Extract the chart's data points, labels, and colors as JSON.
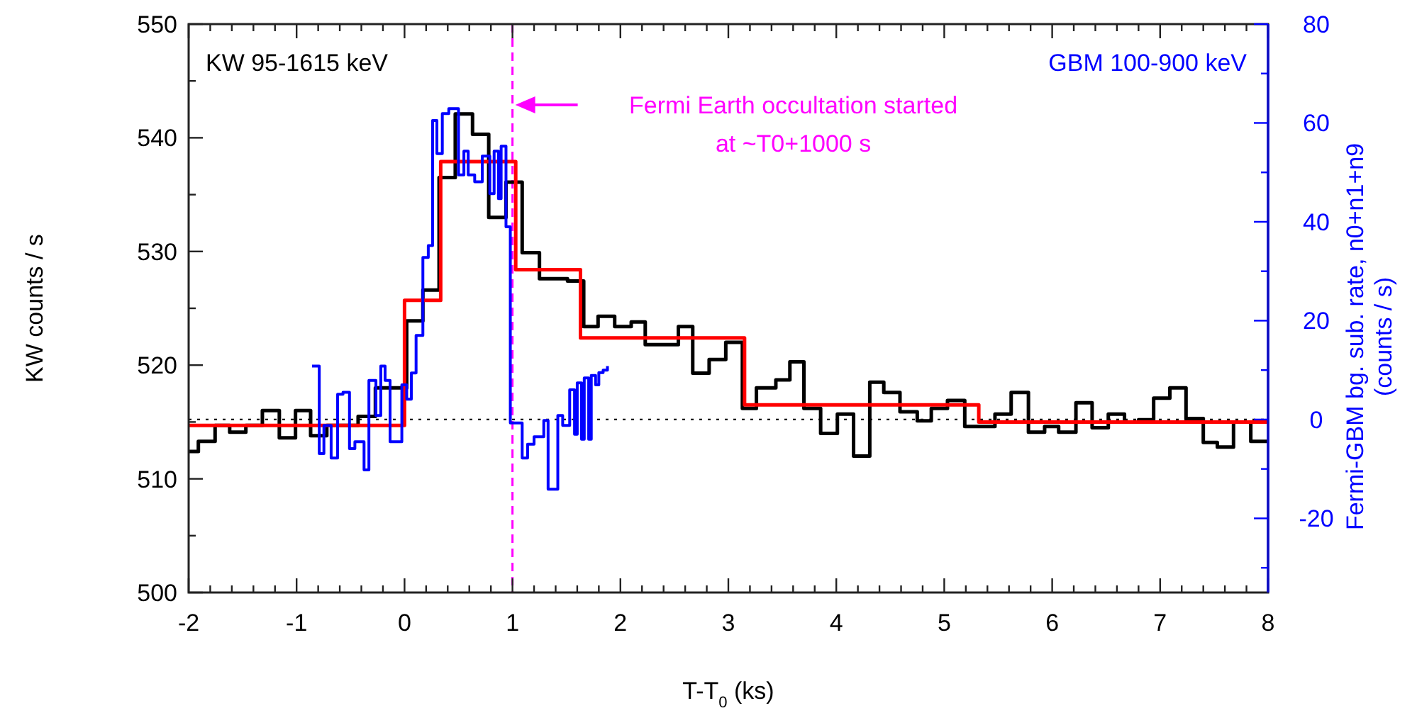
{
  "chart_data": {
    "type": "step",
    "xlabel": "T-T$_{0}$ (ks)",
    "ylabel": "KW counts / s",
    "y2label": "Fermi-GBM bg. sub. rate, n0+n1+n9\n(counts / s)",
    "xlim": [
      -2,
      8
    ],
    "xticks": [
      -2,
      {
        "value": -1.8,
        "label": null
      },
      {
        "value": -1.6,
        "label": null
      },
      {
        "value": -1.4,
        "label": null
      },
      {
        "value": -1.2,
        "label": null
      },
      -1,
      {
        "value": -0.8,
        "label": null
      },
      {
        "value": -0.6,
        "label": null
      },
      {
        "value": -0.4,
        "label": null
      },
      {
        "value": -0.2,
        "label": null
      },
      0,
      {
        "value": 0.2,
        "label": null
      },
      {
        "value": 0.4,
        "label": null
      },
      {
        "value": 0.6,
        "label": null
      },
      {
        "value": 0.8,
        "label": null
      },
      1,
      {
        "value": 1.2,
        "label": null
      },
      {
        "value": 1.4,
        "label": null
      },
      {
        "value": 1.6,
        "label": null
      },
      {
        "value": 1.8,
        "label": null
      },
      2,
      {
        "value": 2.2,
        "label": null
      },
      {
        "value": 2.4,
        "label": null
      },
      {
        "value": 2.6,
        "label": null
      },
      {
        "value": 2.8,
        "label": null
      },
      3,
      {
        "value": 3.2,
        "label": null
      },
      {
        "value": 3.4,
        "label": null
      },
      {
        "value": 3.6,
        "label": null
      },
      {
        "value": 3.8,
        "label": null
      },
      4,
      {
        "value": 4.2,
        "label": null
      },
      {
        "value": 4.4,
        "label": null
      },
      {
        "value": 4.6,
        "label": null
      },
      {
        "value": 4.8,
        "label": null
      },
      5,
      {
        "value": 5.2,
        "label": null
      },
      {
        "value": 5.4,
        "label": null
      },
      {
        "value": 5.6,
        "label": null
      },
      {
        "value": 5.8,
        "label": null
      },
      6,
      {
        "value": 6.2,
        "label": null
      },
      {
        "value": 6.4,
        "label": null
      },
      {
        "value": 6.6,
        "label": null
      },
      {
        "value": 6.8,
        "label": null
      },
      7,
      {
        "value": 7.2,
        "label": null
      },
      {
        "value": 7.4,
        "label": null
      },
      {
        "value": 7.6,
        "label": null
      },
      {
        "value": 7.8,
        "label": null
      },
      8
    ],
    "ylim": [
      500,
      550
    ],
    "yticks": [
      500,
      {
        "value": 505,
        "label": null
      },
      510,
      {
        "value": 515,
        "label": null
      },
      520,
      {
        "value": 525,
        "label": null
      },
      530,
      {
        "value": 535,
        "label": null
      },
      540,
      {
        "value": 545,
        "label": null
      },
      550
    ],
    "y2lim": [
      -35,
      80
    ],
    "y2ticks": [
      {
        "value": -30,
        "label": null
      },
      -20,
      {
        "value": -10,
        "label": null
      },
      0,
      {
        "value": 10,
        "label": null
      },
      20,
      {
        "value": 30,
        "label": null
      },
      40,
      {
        "value": 50,
        "label": null
      },
      60,
      {
        "value": 70,
        "label": null
      },
      80
    ],
    "grid": false,
    "line_style": "solid",
    "marker": "none",
    "series": [
      {
        "name": "KW 95-1615 keV",
        "color": "#000000",
        "x": [
          -2,
          -1.91,
          -1.755,
          -1.62,
          -1.47,
          -1.317,
          -1.16,
          -1.01,
          -0.87,
          -0.72,
          -0.57,
          -0.43,
          -0.27,
          -0.12,
          0.02,
          0.17,
          0.32,
          0.47,
          0.63,
          0.78,
          0.94,
          1.09,
          1.25,
          1.51,
          1.66,
          1.793,
          1.947,
          2.1,
          2.23,
          2.537,
          2.67,
          2.822,
          2.976,
          3.13,
          3.26,
          3.44,
          3.57,
          3.7,
          3.855,
          4.01,
          4.16,
          4.31,
          4.44,
          4.59,
          4.75,
          4.88,
          5.03,
          5.19,
          5.47,
          5.62,
          5.78,
          5.93,
          6.06,
          6.22,
          6.37,
          6.52,
          6.67,
          6.8,
          6.94,
          7.09,
          7.24,
          7.4,
          7.53,
          7.68,
          7.84,
          8
        ],
        "values": [
          512.4,
          513.3,
          514.7,
          514.1,
          514.7,
          516.0,
          513.6,
          516.0,
          513.8,
          514.7,
          514.7,
          515.5,
          518.0,
          518.0,
          523.9,
          526.6,
          536.5,
          542.1,
          540.3,
          533.0,
          536.1,
          529.9,
          527.6,
          527.4,
          523.4,
          524.3,
          523.4,
          523.8,
          521.8,
          523.4,
          519.3,
          520.5,
          522.0,
          516.2,
          518.0,
          518.7,
          520.3,
          516.2,
          514.0,
          515.7,
          512.0,
          518.5,
          517.6,
          515.9,
          515.1,
          516.2,
          516.9,
          514.6,
          515.7,
          517.6,
          514.1,
          514.6,
          514.1,
          516.7,
          514.5,
          515.7,
          515.0,
          515.2,
          517.1,
          518.0,
          515.3,
          513.2,
          512.8,
          515.0,
          513.3,
          513.3
        ]
      },
      {
        "color": "#ff0000",
        "x": [
          -2,
          0,
          0.335,
          1.03,
          1.63,
          3.15,
          5.32,
          8
        ],
        "values": [
          514.7,
          525.7,
          537.9,
          528.4,
          522.4,
          516.5,
          515.0,
          515.0
        ]
      },
      {
        "name": "GBM 100-900 keV",
        "color": "#0000ff",
        "axis": "y2",
        "x": [
          -0.857,
          -0.79,
          -0.747,
          -0.68,
          -0.62,
          -0.57,
          -0.51,
          -0.46,
          -0.375,
          -0.33,
          -0.265,
          -0.22,
          -0.18,
          -0.134,
          -0.077,
          -0.025,
          0.02,
          0.063,
          0.107,
          0.17,
          0.22,
          0.26,
          0.3,
          0.35,
          0.41,
          0.5,
          0.55,
          0.59,
          0.65,
          0.72,
          0.79,
          0.83,
          0.87,
          0.895,
          0.94,
          0.98,
          1.09,
          1.14,
          1.2,
          1.29,
          1.33,
          1.42,
          1.465,
          1.53,
          1.575,
          1.6,
          1.64,
          1.665,
          1.706,
          1.73,
          1.77,
          1.8,
          1.84,
          1.88
        ],
        "values": [
          10.8,
          -6.9,
          -1.2,
          -7.8,
          5.1,
          5.5,
          -5.9,
          -4.5,
          -10.2,
          7.9,
          0.8,
          10.8,
          7.9,
          -4.5,
          -4.5,
          7.0,
          4.1,
          9.4,
          17.0,
          32.8,
          35.2,
          60.5,
          53.8,
          61.9,
          62.9,
          49.5,
          54.3,
          49.5,
          48.1,
          53.3,
          45.7,
          54.3,
          44.7,
          55.3,
          39.0,
          -0.7,
          -7.8,
          -5.0,
          -3.5,
          -0.2,
          -14.1,
          0.8,
          -1.2,
          6.0,
          -3.0,
          7.4,
          -4.0,
          8.4,
          -4.0,
          8.9,
          7.0,
          9.5,
          10.0,
          10.8
        ]
      }
    ],
    "ref_lines": [
      {
        "axis": "x",
        "value": 1,
        "label": "Fermi Earth occultation started\nat ~T0+1000 s",
        "color": "#ff00ff",
        "line_style": "dashed"
      },
      {
        "axis": "y2",
        "value": 0,
        "color": "#000000",
        "line_style": "dotted"
      }
    ]
  }
}
